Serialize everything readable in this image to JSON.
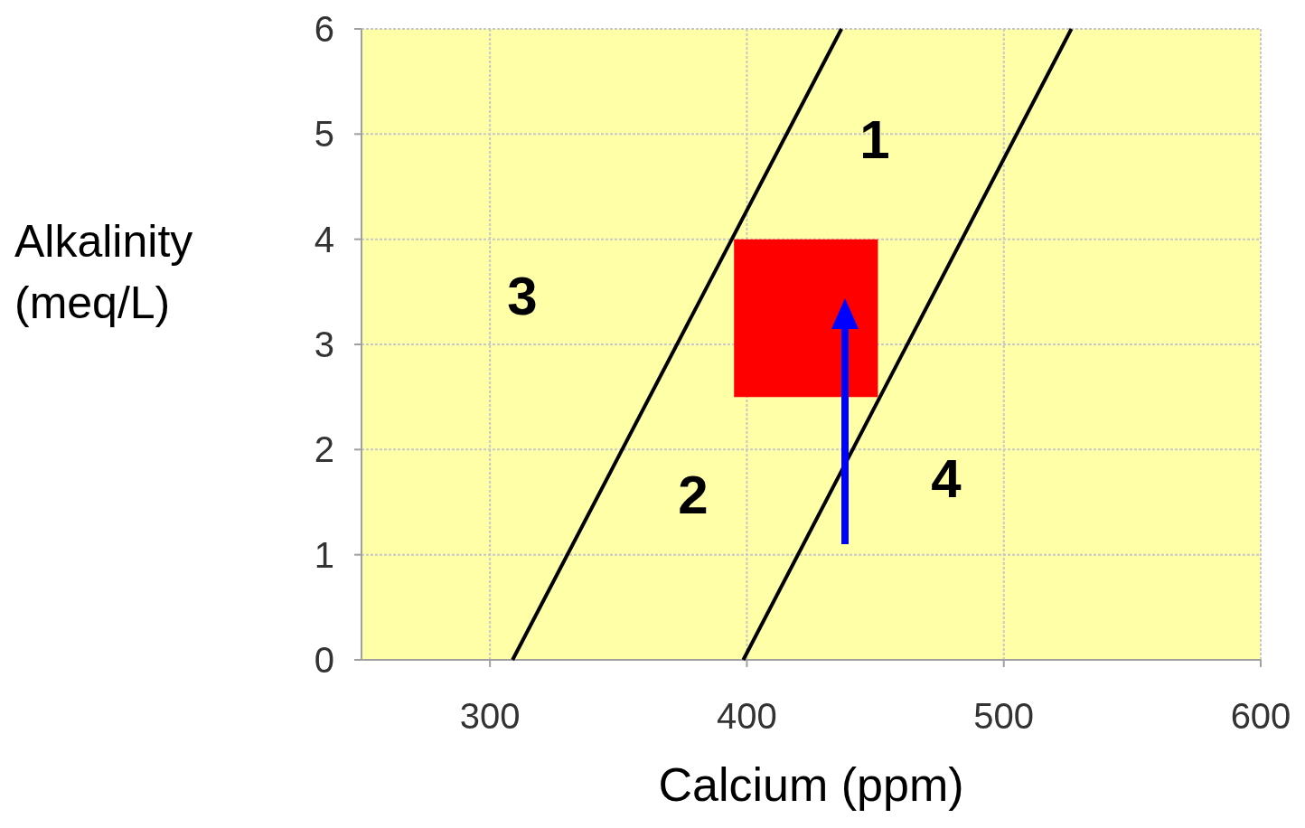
{
  "chart_data": {
    "type": "line",
    "xlabel": "Calcium (ppm)",
    "ylabel": "Alkalinity (meq/L)",
    "xlim": [
      250,
      600
    ],
    "xticks": [
      300,
      400,
      500,
      600
    ],
    "ylim": [
      0,
      6
    ],
    "yticks": [
      0,
      1,
      2,
      3,
      4,
      5,
      6
    ],
    "grid": true,
    "series": [
      {
        "color": "#000000",
        "x": [
          308.8,
          436.8
        ],
        "values": [
          0,
          6
        ]
      },
      {
        "color": "#000000",
        "x": [
          398.6,
          526.3
        ],
        "values": [
          0,
          6
        ]
      },
      {
        "type": "area",
        "color": "#ff0000",
        "x": [
          395,
          451,
          451,
          395
        ],
        "values": [
          2.5,
          2.5,
          4,
          4
        ]
      }
    ],
    "annotations": [
      "1",
      "2",
      "3",
      "4"
    ]
  }
}
